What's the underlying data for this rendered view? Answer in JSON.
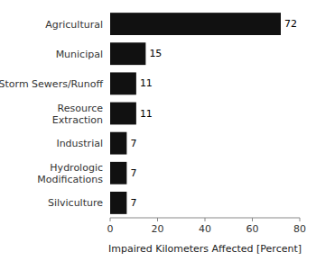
{
  "chart_data": {
    "type": "bar",
    "orientation": "horizontal",
    "categories": [
      "Silviculture",
      "Hydrologic\nModifications",
      "Industrial",
      "Resource\nExtraction",
      "Storm Sewers/Runoff",
      "Municipal",
      "Agricultural"
    ],
    "values": [
      7,
      7,
      7,
      11,
      11,
      15,
      72
    ],
    "color": "#111111",
    "xlabel": "Impaired Kilometers Affected [Percent]",
    "xlim": [
      0,
      80
    ],
    "xticks": [
      0,
      20,
      40,
      60,
      80
    ],
    "data_labels": true,
    "grid": false
  }
}
